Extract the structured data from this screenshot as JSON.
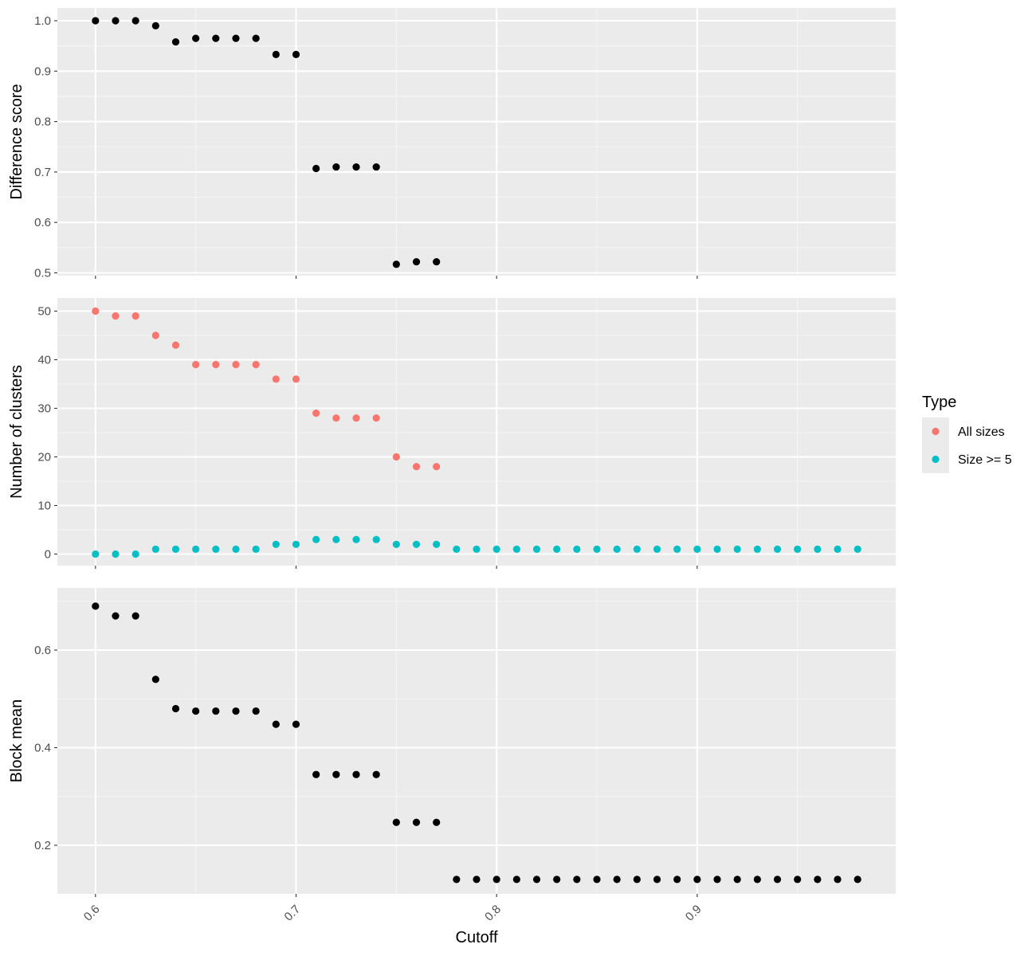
{
  "chart_data": [
    {
      "type": "scatter",
      "ylabel": "Difference score",
      "ylim": [
        0.5,
        1.0
      ],
      "y_ticks": [
        "0.5",
        "0.6",
        "0.7",
        "0.8",
        "0.9",
        "1.0"
      ],
      "grid": true,
      "series": [
        {
          "color": "#000000",
          "x": [
            0.6,
            0.61,
            0.62,
            0.63,
            0.64,
            0.65,
            0.66,
            0.67,
            0.68,
            0.69,
            0.7,
            0.71,
            0.72,
            0.73,
            0.74,
            0.75,
            0.76,
            0.77
          ],
          "y": [
            1.0,
            1.0,
            1.0,
            0.99,
            0.958,
            0.965,
            0.965,
            0.965,
            0.965,
            0.933,
            0.933,
            0.707,
            0.71,
            0.71,
            0.71,
            0.517,
            0.522,
            0.522
          ]
        }
      ]
    },
    {
      "type": "scatter",
      "ylabel": "Number of clusters",
      "ylim": [
        0,
        50
      ],
      "y_ticks": [
        "0",
        "10",
        "20",
        "30",
        "40",
        "50"
      ],
      "grid": true,
      "series": [
        {
          "name": "All sizes",
          "color": "#F8766D",
          "x": [
            0.6,
            0.61,
            0.62,
            0.63,
            0.64,
            0.65,
            0.66,
            0.67,
            0.68,
            0.69,
            0.7,
            0.71,
            0.72,
            0.73,
            0.74,
            0.75,
            0.76,
            0.77
          ],
          "y": [
            50,
            49,
            49,
            45,
            43,
            39,
            39,
            39,
            39,
            36,
            36,
            29,
            28,
            28,
            28,
            20,
            18,
            18
          ]
        },
        {
          "name": "Size >= 5",
          "color": "#00BFC4",
          "x": [
            0.6,
            0.61,
            0.62,
            0.63,
            0.64,
            0.65,
            0.66,
            0.67,
            0.68,
            0.69,
            0.7,
            0.71,
            0.72,
            0.73,
            0.74,
            0.75,
            0.76,
            0.77,
            0.78,
            0.79,
            0.8,
            0.81,
            0.82,
            0.83,
            0.84,
            0.85,
            0.86,
            0.87,
            0.88,
            0.89,
            0.9,
            0.91,
            0.92,
            0.93,
            0.94,
            0.95,
            0.96,
            0.97,
            0.98
          ],
          "y": [
            0,
            0,
            0,
            1,
            1,
            1,
            1,
            1,
            1,
            2,
            2,
            3,
            3,
            3,
            3,
            2,
            2,
            2,
            1,
            1,
            1,
            1,
            1,
            1,
            1,
            1,
            1,
            1,
            1,
            1,
            1,
            1,
            1,
            1,
            1,
            1,
            1,
            1,
            1
          ]
        }
      ]
    },
    {
      "type": "scatter",
      "ylabel": "Block mean",
      "ylim": [
        0.2,
        0.6
      ],
      "y_ticks": [
        "0.2",
        "0.4",
        "0.6"
      ],
      "grid": true,
      "series": [
        {
          "color": "#000000",
          "x": [
            0.6,
            0.61,
            0.62,
            0.63,
            0.64,
            0.65,
            0.66,
            0.67,
            0.68,
            0.69,
            0.7,
            0.71,
            0.72,
            0.73,
            0.74,
            0.75,
            0.76,
            0.77,
            0.78,
            0.79,
            0.8,
            0.81,
            0.82,
            0.83,
            0.84,
            0.85,
            0.86,
            0.87,
            0.88,
            0.89,
            0.9,
            0.91,
            0.92,
            0.93,
            0.94,
            0.95,
            0.96,
            0.97,
            0.98
          ],
          "y": [
            0.69,
            0.67,
            0.67,
            0.54,
            0.48,
            0.475,
            0.475,
            0.475,
            0.475,
            0.448,
            0.448,
            0.345,
            0.345,
            0.345,
            0.345,
            0.247,
            0.247,
            0.247,
            0.13,
            0.13,
            0.13,
            0.13,
            0.13,
            0.13,
            0.13,
            0.13,
            0.13,
            0.13,
            0.13,
            0.13,
            0.13,
            0.13,
            0.13,
            0.13,
            0.13,
            0.13,
            0.13,
            0.13,
            0.13
          ]
        }
      ]
    }
  ],
  "shared_x": {
    "xlabel": "Cutoff",
    "x_ticks": [
      "0.6",
      "0.7",
      "0.8",
      "0.9"
    ],
    "x_tick_values": [
      0.6,
      0.7,
      0.8,
      0.9
    ],
    "xlim": [
      0.581,
      0.999
    ]
  },
  "legend": {
    "title": "Type",
    "position": "right",
    "items": [
      {
        "label": "All sizes",
        "color": "#F8766D"
      },
      {
        "label": "Size >= 5",
        "color": "#00BFC4"
      }
    ]
  }
}
